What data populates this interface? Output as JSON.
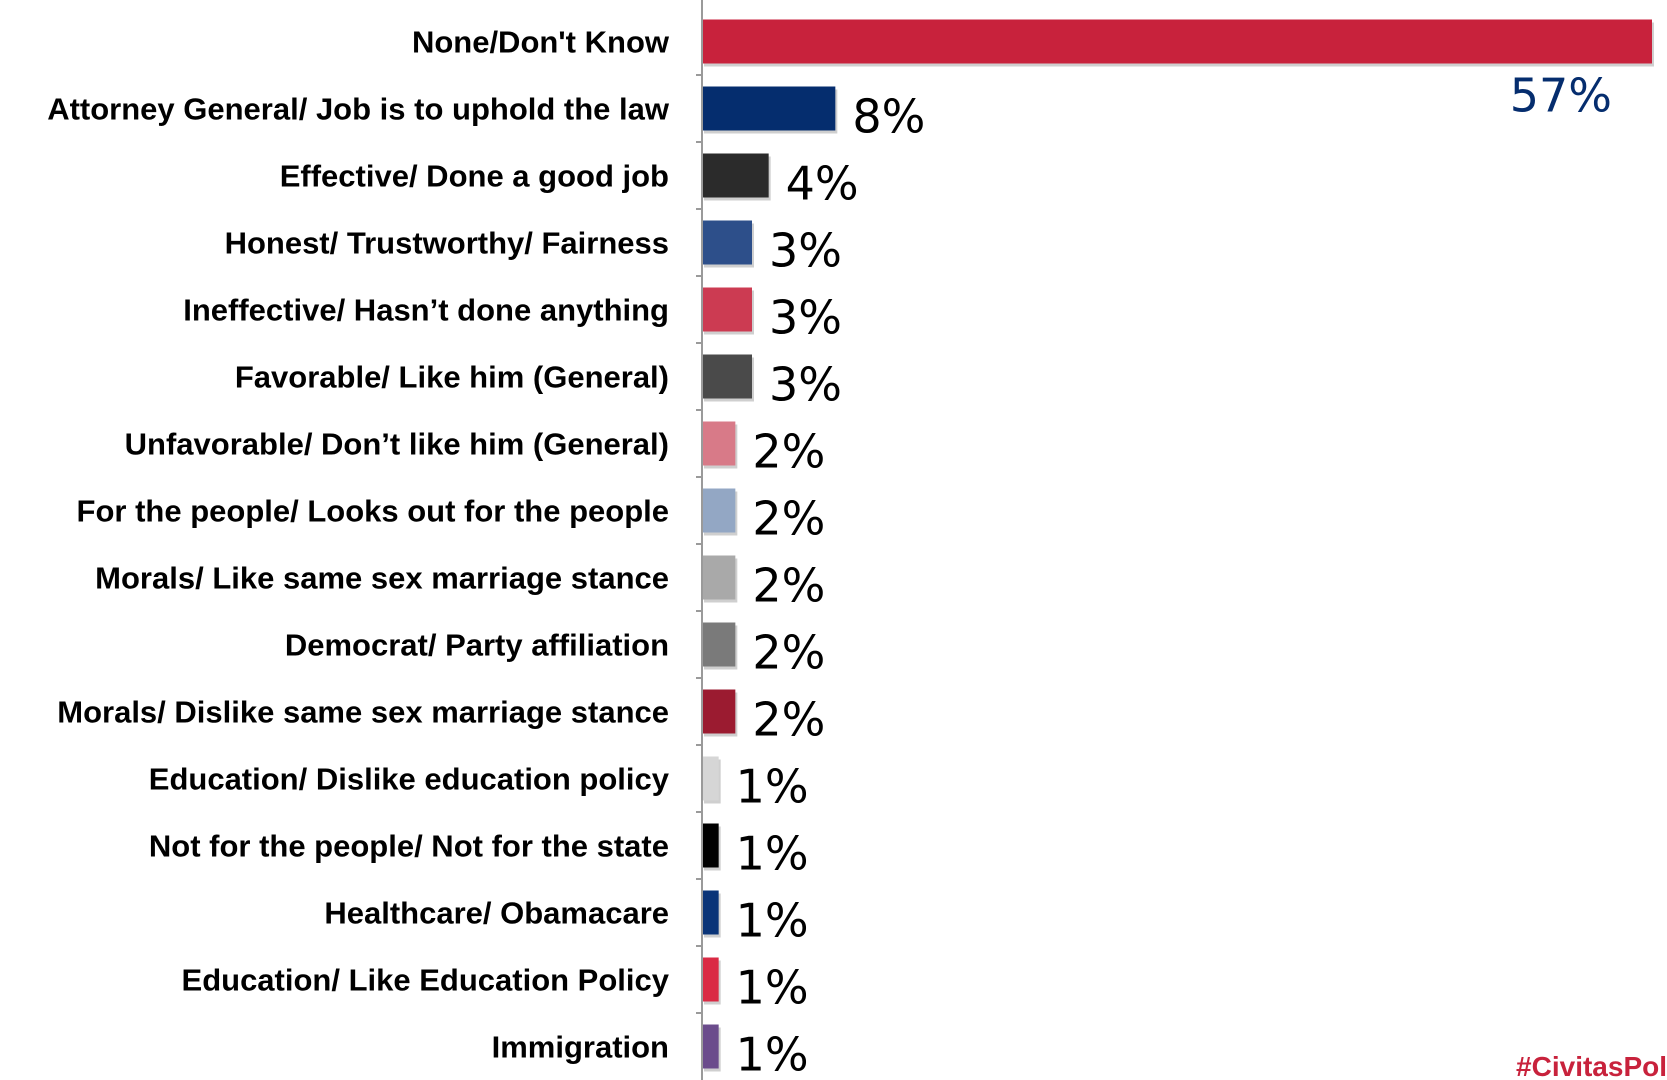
{
  "chart_data": {
    "type": "bar",
    "orientation": "horizontal",
    "categories": [
      "None/Don't Know",
      "Attorney General/ Job is to uphold the law",
      "Effective/ Done a good job",
      "Honest/ Trustworthy/ Fairness",
      "Ineffective/ Hasn’t done anything",
      "Favorable/ Like him (General)",
      "Unfavorable/ Don’t like him (General)",
      "For the people/ Looks out for the people",
      "Morals/ Like same sex marriage stance",
      "Democrat/ Party affiliation",
      "Morals/ Dislike same sex marriage stance",
      "Education/ Dislike education policy",
      "Not for the people/ Not for the state",
      "Healthcare/ Obamacare",
      "Education/ Like Education Policy",
      "Immigration"
    ],
    "values": [
      57,
      8,
      4,
      3,
      3,
      3,
      2,
      2,
      2,
      2,
      2,
      1,
      1,
      1,
      1,
      1
    ],
    "value_labels": [
      "57%",
      "8%",
      "4%",
      "3%",
      "3%",
      "3%",
      "2%",
      "2%",
      "2%",
      "2%",
      "2%",
      "1%",
      "1%",
      "1%",
      "1%",
      "1%"
    ],
    "colors": [
      "#c8223c",
      "#052d6e",
      "#2b2b2b",
      "#2d4f8a",
      "#cc3b52",
      "#4a4a4a",
      "#d87a88",
      "#93a7c4",
      "#a9a9a9",
      "#7a7a7a",
      "#9b1b30",
      "#d6d6d6",
      "#000000",
      "#0a3478",
      "#da2a44",
      "#6b4c8c"
    ],
    "value_label_color": "#052d6e",
    "xlim": [
      0,
      57
    ],
    "grid": false,
    "legend": "none",
    "title": "",
    "xlabel": "",
    "ylabel": ""
  },
  "footer": {
    "hashtag": "#CivitasPol",
    "color": "#c8223c"
  }
}
